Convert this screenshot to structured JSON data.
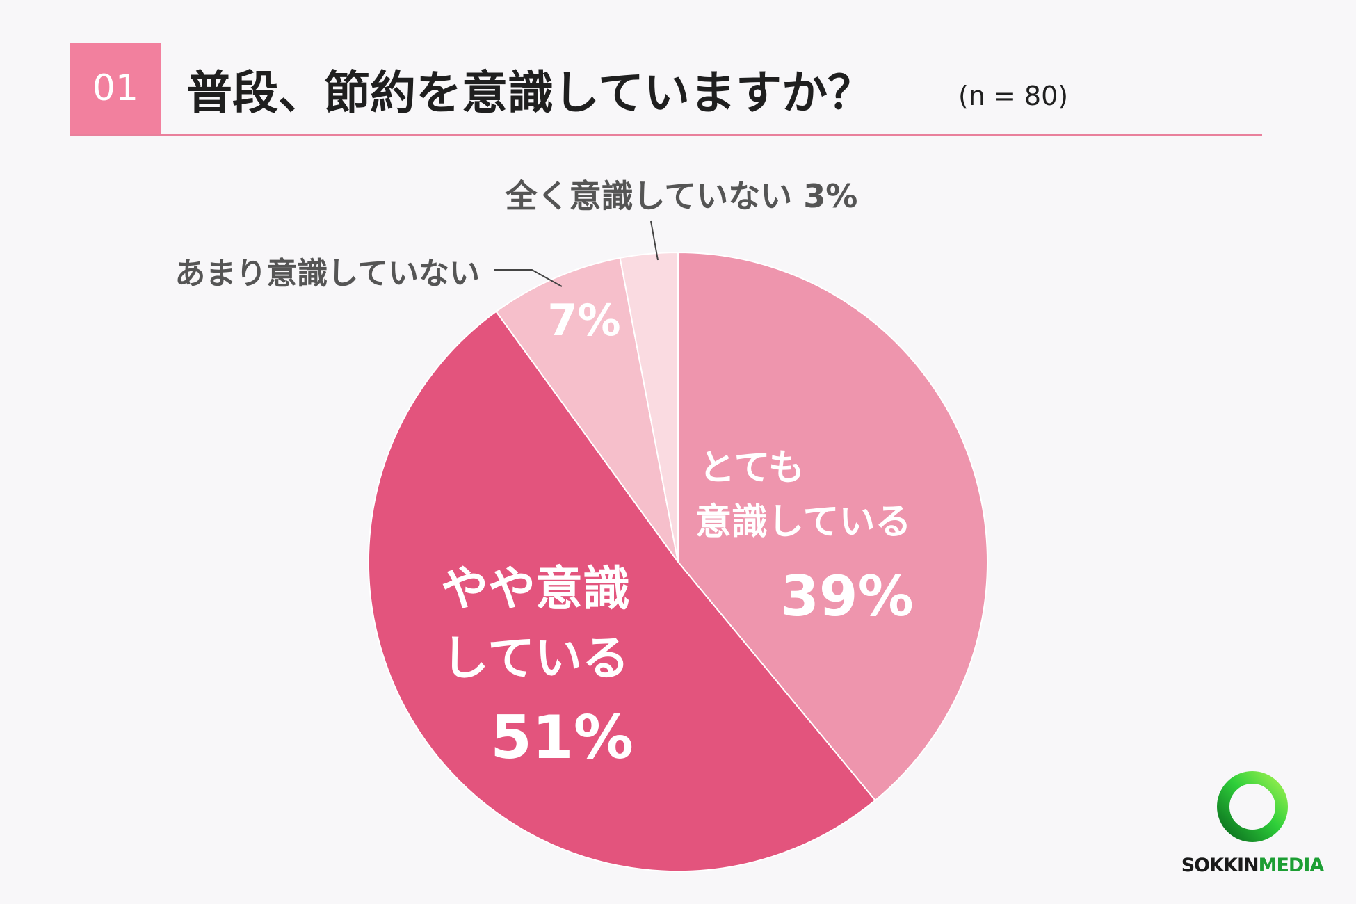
{
  "header": {
    "number": "01",
    "question": "普段、節約を意識していますか？",
    "sample": "(n = 80)"
  },
  "colors": {
    "badge": "#f2809e",
    "rule": "#e9809c",
    "title_text": "#1f1f1f",
    "label_text": "#555555"
  },
  "chart_data": {
    "type": "pie",
    "start": "12 o'clock",
    "direction": "clockwise",
    "slices": [
      {
        "label_lines": [
          "とても",
          "意識している"
        ],
        "value": 39,
        "value_text": "39%",
        "color": "#ee95ad",
        "label_position": "inside"
      },
      {
        "label_lines": [
          "やや意識",
          "している"
        ],
        "value": 51,
        "value_text": "51%",
        "color": "#e3547d",
        "label_position": "inside"
      },
      {
        "label_lines": [
          "あまり意識していない"
        ],
        "value": 7,
        "value_text": "7%",
        "color": "#f6bfcb",
        "label_position": "outside-left"
      },
      {
        "label_lines": [
          "全く意識していない 3%"
        ],
        "value": 3,
        "value_text": "",
        "color": "#fadbe1",
        "label_position": "outside-top"
      }
    ]
  },
  "logo": {
    "text_main": "SOKKIN",
    "text_accent": "MEDIA"
  }
}
